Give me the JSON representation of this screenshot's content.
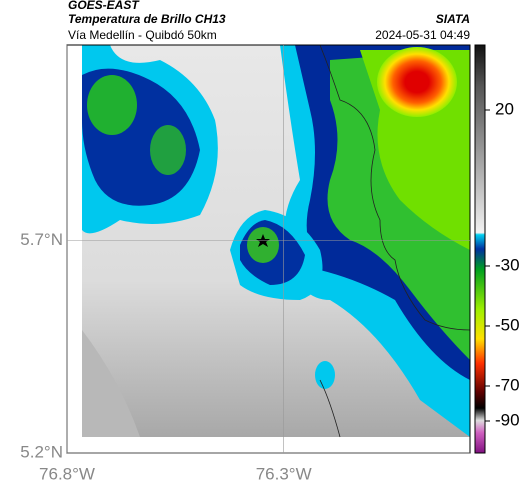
{
  "header": {
    "source": "GOES-EAST",
    "title": "Temperatura de Brillo CH13",
    "subtitle": "Vía Medellín - Quibdó 50km",
    "credit": "SIATA",
    "datetime": "2024-05-31 04:49"
  },
  "map": {
    "xlim": [
      -76.8,
      -75.87
    ],
    "ylim": [
      5.2,
      6.16
    ],
    "xticks": [
      {
        "value": -76.8,
        "label": "76.8°W"
      },
      {
        "value": -76.3,
        "label": "76.3°W"
      }
    ],
    "yticks": [
      {
        "value": 5.7,
        "label": "5.7°N"
      },
      {
        "value": 5.2,
        "label": "5.2°N"
      }
    ],
    "grid": true
  },
  "colorbar": {
    "ticks": [
      20,
      -30,
      -50,
      -70,
      -90
    ]
  }
}
